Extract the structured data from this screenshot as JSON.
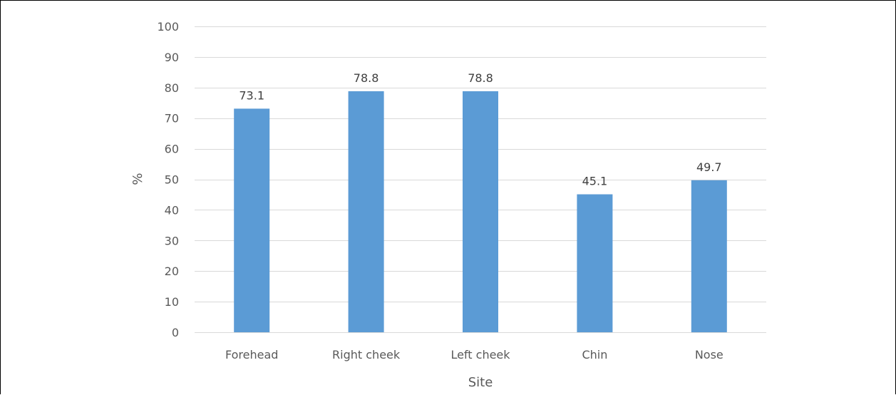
{
  "chart_data": {
    "type": "bar",
    "categories": [
      "Forehead",
      "Right cheek",
      "Left cheek",
      "Chin",
      "Nose"
    ],
    "values": [
      73.1,
      78.8,
      78.8,
      45.1,
      49.7
    ],
    "data_labels": [
      "73.1",
      "78.8",
      "78.8",
      "45.1",
      "49.7"
    ],
    "title": "",
    "xlabel": "Site",
    "ylabel": "%",
    "ylim": [
      0,
      100
    ],
    "yticks": [
      0,
      10,
      20,
      30,
      40,
      50,
      60,
      70,
      80,
      90,
      100
    ],
    "grid": true,
    "legend": "none",
    "colors": {
      "bar": "#5b9bd5",
      "grid": "#d9d9d9",
      "text": "#595959"
    }
  }
}
